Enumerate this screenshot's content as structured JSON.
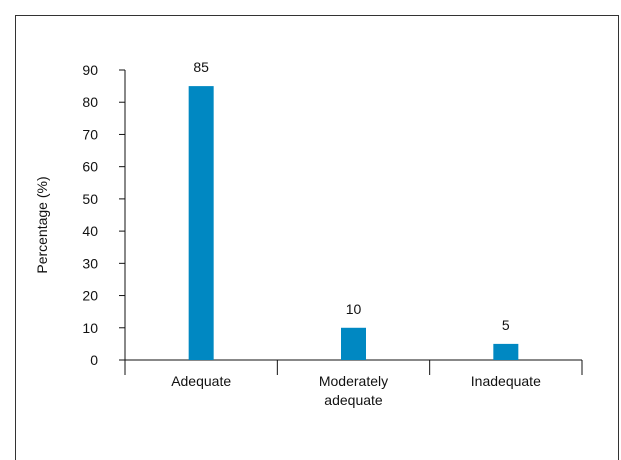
{
  "chart_data": {
    "type": "bar",
    "categories": [
      "Adequate",
      "Moderately adequate",
      "Inadequate"
    ],
    "category_lines": [
      [
        "Adequate"
      ],
      [
        "Moderately",
        "adequate"
      ],
      [
        "Inadequate"
      ]
    ],
    "values": [
      85,
      10,
      5
    ],
    "data_labels": [
      "85",
      "10",
      "5"
    ],
    "title": "",
    "xlabel": "",
    "ylabel": "Percentage (%)",
    "ylim": [
      0,
      90
    ],
    "yticks": [
      0,
      10,
      20,
      30,
      40,
      50,
      60,
      70,
      80,
      90
    ],
    "grid": false,
    "legend": "none",
    "bar_color": "#0088c2"
  }
}
